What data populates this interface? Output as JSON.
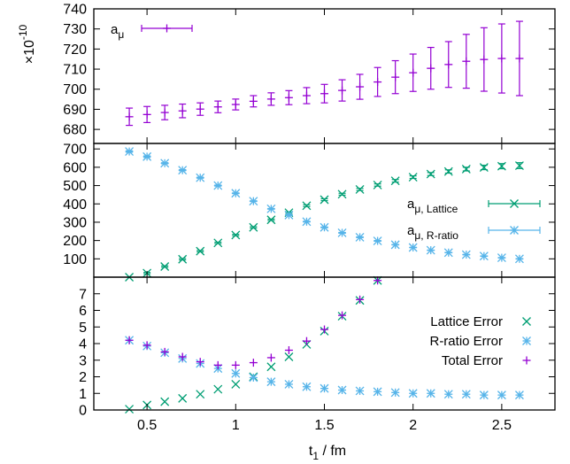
{
  "chart_data": [
    {
      "type": "scatter",
      "panel": "top",
      "ylim": [
        673,
        740
      ],
      "yticks": [
        680,
        690,
        700,
        710,
        720,
        730,
        740
      ],
      "ylabel_prefix": "×",
      "ylabel_base": "10",
      "ylabel_exp": "-10",
      "series": [
        {
          "name": "a",
          "name_sub": "μ",
          "color": "#9400d3",
          "marker": "plus",
          "errorbars": true,
          "x": [
            0.4,
            0.5,
            0.6,
            0.7,
            0.8,
            0.9,
            1.0,
            1.1,
            1.2,
            1.3,
            1.4,
            1.5,
            1.6,
            1.7,
            1.8,
            1.9,
            2.0,
            2.1,
            2.2,
            2.3,
            2.4,
            2.5,
            2.6
          ],
          "y": [
            686.3,
            687.4,
            688.4,
            689.2,
            690.1,
            691.2,
            692.4,
            694.0,
            695.1,
            695.8,
            696.8,
            697.8,
            699.4,
            701.2,
            703.6,
            706.0,
            708.2,
            710.4,
            712.3,
            713.9,
            714.8,
            715.3,
            715.3
          ],
          "yerr": [
            4.3,
            4.0,
            3.6,
            3.4,
            3.1,
            2.9,
            2.7,
            2.8,
            3.1,
            3.5,
            4.0,
            4.6,
            5.3,
            6.2,
            7.2,
            8.2,
            9.3,
            10.4,
            11.4,
            13.4,
            15.8,
            17.2,
            18.5
          ]
        }
      ]
    },
    {
      "type": "scatter",
      "panel": "middle",
      "ylim": [
        0,
        730
      ],
      "yticks": [
        100,
        200,
        300,
        400,
        500,
        600,
        700
      ],
      "series": [
        {
          "name": "a",
          "name_sub": "μ, Lattice",
          "color": "#009e73",
          "marker": "cross",
          "errorbars": true,
          "x": [
            0.4,
            0.5,
            0.6,
            0.7,
            0.8,
            0.9,
            1.0,
            1.1,
            1.2,
            1.3,
            1.4,
            1.5,
            1.6,
            1.7,
            1.8,
            1.9,
            2.0,
            2.1,
            2.2,
            2.3,
            2.4,
            2.5,
            2.6
          ],
          "y": [
            0,
            22,
            58,
            98,
            142,
            187,
            230,
            272,
            313,
            352,
            390,
            423,
            453,
            479,
            503,
            526,
            546,
            563,
            577,
            590,
            599,
            606,
            609
          ],
          "yerr": [
            0,
            4,
            4,
            4,
            4,
            4,
            4,
            4,
            4,
            4,
            5,
            5,
            5,
            6,
            6,
            7,
            7,
            8,
            9,
            10,
            12,
            14,
            16
          ]
        },
        {
          "name": "a",
          "name_sub": "μ, R-ratio",
          "color": "#56b4e9",
          "marker": "star",
          "errorbars": true,
          "x": [
            0.4,
            0.5,
            0.6,
            0.7,
            0.8,
            0.9,
            1.0,
            1.1,
            1.2,
            1.3,
            1.4,
            1.5,
            1.6,
            1.7,
            1.8,
            1.9,
            2.0,
            2.1,
            2.2,
            2.3,
            2.4,
            2.5,
            2.6
          ],
          "y": [
            686,
            658,
            622,
            584,
            543,
            500,
            458,
            415,
            373,
            339,
            303,
            272,
            242,
            218,
            198,
            177,
            162,
            147,
            134,
            123,
            115,
            106,
            100
          ],
          "yerr": [
            4,
            4,
            3,
            3,
            3,
            3,
            2,
            2,
            2,
            2,
            2,
            2,
            2,
            2,
            2,
            1,
            1,
            1,
            1,
            1,
            1,
            1,
            1
          ]
        }
      ]
    },
    {
      "type": "scatter",
      "panel": "bottom",
      "ylim": [
        0,
        8
      ],
      "yticks": [
        0,
        1,
        2,
        3,
        4,
        5,
        6,
        7
      ],
      "xlim": [
        0.2,
        2.8
      ],
      "xticks": [
        0.5,
        1,
        1.5,
        2,
        2.5
      ],
      "xlabel_base": "t",
      "xlabel_sub": "1",
      "xlabel_rest": " / fm",
      "series": [
        {
          "name": "Lattice Error",
          "color": "#009e73",
          "marker": "cross",
          "x": [
            0.4,
            0.5,
            0.6,
            0.7,
            0.8,
            0.9,
            1.0,
            1.1,
            1.2,
            1.3,
            1.4,
            1.5,
            1.6,
            1.7,
            1.8
          ],
          "y": [
            0.05,
            0.3,
            0.5,
            0.7,
            0.95,
            1.25,
            1.55,
            2.0,
            2.6,
            3.2,
            3.95,
            4.75,
            5.65,
            6.6,
            7.8
          ]
        },
        {
          "name": "R-ratio Error",
          "color": "#56b4e9",
          "marker": "star",
          "x": [
            0.4,
            0.5,
            0.6,
            0.7,
            0.8,
            0.9,
            1.0,
            1.1,
            1.2,
            1.3,
            1.4,
            1.5,
            1.6,
            1.7,
            1.8,
            1.9,
            2.0,
            2.1,
            2.2,
            2.3,
            2.4,
            2.5,
            2.6
          ],
          "y": [
            4.2,
            3.85,
            3.45,
            3.1,
            2.8,
            2.5,
            2.2,
            1.95,
            1.7,
            1.55,
            1.4,
            1.3,
            1.2,
            1.15,
            1.1,
            1.05,
            1.0,
            1.0,
            0.95,
            0.95,
            0.9,
            0.9,
            0.9
          ]
        },
        {
          "name": "Total Error",
          "color": "#9400d3",
          "marker": "plus",
          "x": [
            0.4,
            0.5,
            0.6,
            0.7,
            0.8,
            0.9,
            1.0,
            1.1,
            1.2,
            1.3,
            1.4,
            1.5,
            1.6,
            1.7,
            1.8
          ],
          "y": [
            4.2,
            3.9,
            3.5,
            3.2,
            2.9,
            2.7,
            2.7,
            2.85,
            3.15,
            3.6,
            4.15,
            4.85,
            5.7,
            6.65,
            7.8
          ]
        }
      ]
    }
  ]
}
